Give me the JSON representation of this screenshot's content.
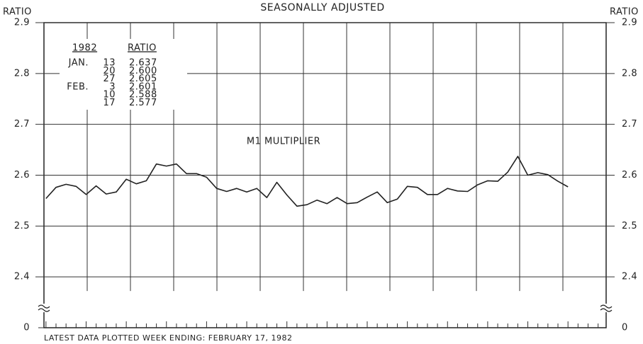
{
  "chart_data": {
    "type": "line",
    "title": "SEASONALLY ADJUSTED",
    "y_label": "RATIO",
    "y2_label": "RATIO",
    "annotation": "M1 MULTIPLIER",
    "footnote": "LATEST DATA PLOTTED WEEK ENDING: FEBRUARY 17, 1982",
    "categories": [
      null,
      null,
      null,
      null,
      null,
      null,
      null,
      null,
      null,
      null,
      null,
      null,
      null,
      null,
      null,
      null,
      null,
      null,
      null,
      null,
      null,
      null,
      null,
      null,
      null,
      null,
      null,
      null,
      null,
      null,
      null,
      null,
      null,
      null,
      null,
      null,
      null,
      null,
      null,
      null,
      null,
      null,
      null,
      null,
      null,
      null,
      null,
      null,
      null,
      null,
      null,
      null,
      null,
      null,
      null,
      null
    ],
    "series": [
      {
        "name": "M1 MULTIPLIER",
        "color": "#222222",
        "values": [
          2.554,
          2.576,
          2.582,
          2.578,
          2.562,
          2.579,
          2.563,
          2.567,
          2.592,
          2.583,
          2.589,
          2.622,
          2.618,
          2.622,
          2.603,
          2.603,
          2.596,
          2.574,
          2.568,
          2.574,
          2.567,
          2.574,
          2.556,
          2.586,
          2.561,
          2.539,
          2.542,
          2.551,
          2.544,
          2.556,
          2.544,
          2.546,
          2.557,
          2.567,
          2.546,
          2.553,
          2.578,
          2.576,
          2.562,
          2.562,
          2.574,
          2.569,
          2.568,
          2.581,
          2.589,
          2.588,
          2.606,
          2.637,
          2.6,
          2.605,
          2.601,
          2.588,
          2.577,
          null,
          null,
          null
        ]
      }
    ],
    "ylim": [
      0,
      2.9
    ],
    "yticks": [
      0,
      2.4,
      2.5,
      2.6,
      2.7,
      2.8,
      2.9
    ],
    "axis_break": true,
    "grid": true,
    "inset_table": {
      "header": [
        "1982",
        "RATIO"
      ],
      "rows": [
        [
          "JAN.",
          "13",
          "2.637"
        ],
        [
          null,
          "20",
          "2.600"
        ],
        [
          null,
          "27",
          "2.605"
        ],
        [
          "FEB.",
          "3",
          "2.601"
        ],
        [
          null,
          "10",
          "2.588"
        ],
        [
          null,
          "17",
          "2.577"
        ]
      ]
    }
  }
}
